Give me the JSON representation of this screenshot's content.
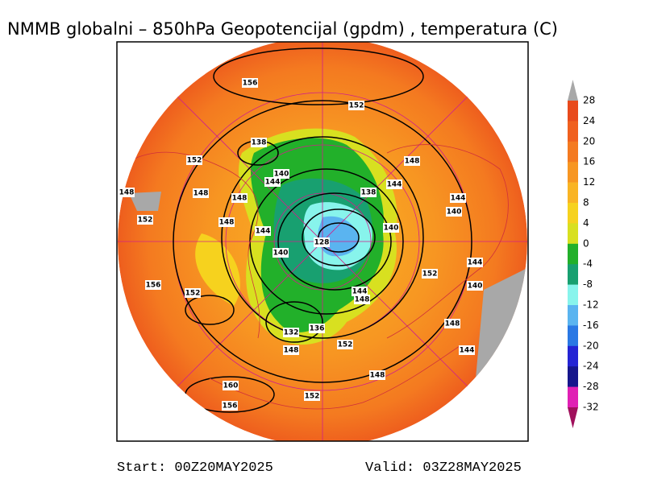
{
  "title": "NMMB globalni – 850hPa Geopotencijal (gpdm) , temperatura (C)",
  "colorbar": {
    "labels": [
      "28",
      "24",
      "20",
      "16",
      "12",
      "8",
      "4",
      "0",
      "-4",
      "-8",
      "-12",
      "-16",
      "-20",
      "-24",
      "-28",
      "-32"
    ],
    "colors": [
      "#a8a8a8",
      "#e84a1c",
      "#f0601e",
      "#f47a20",
      "#f79622",
      "#f9b424",
      "#f6d21e",
      "#d8e020",
      "#22b02a",
      "#18a070",
      "#88f4ec",
      "#5ab4f0",
      "#2a78e4",
      "#2424d4",
      "#16168c",
      "#e020b4",
      "#a0105c"
    ]
  },
  "contour_labels": [
    "156",
    "152",
    "138",
    "152",
    "148",
    "140",
    "144",
    "144",
    "148",
    "148",
    "148",
    "138",
    "144",
    "140",
    "152",
    "148",
    "140",
    "144",
    "128",
    "140",
    "144",
    "152",
    "156",
    "152",
    "140",
    "144",
    "148",
    "148",
    "136",
    "132",
    "148",
    "152",
    "144",
    "148",
    "160",
    "152",
    "156"
  ],
  "footer": {
    "start": "Start: 00Z20MAY2025",
    "valid": "Valid: 03Z28MAY2025"
  }
}
